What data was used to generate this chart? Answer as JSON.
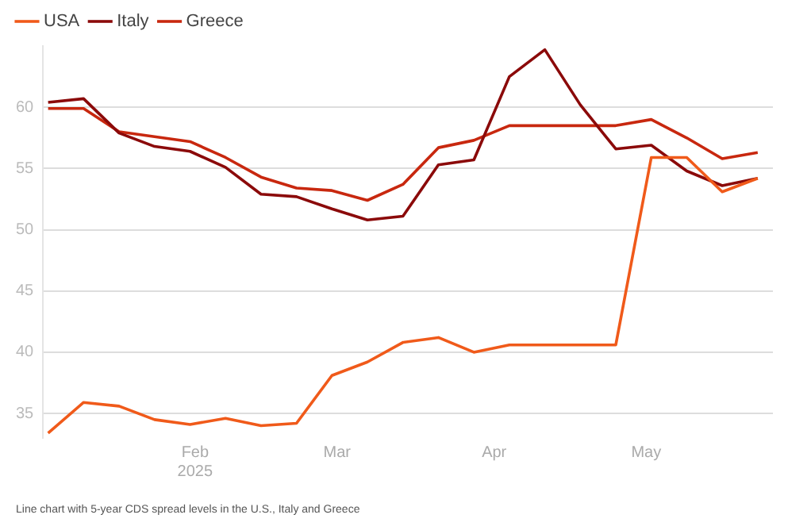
{
  "chart_data": {
    "type": "line",
    "x": [
      "2025-01-03",
      "2025-01-10",
      "2025-01-17",
      "2025-01-24",
      "2025-01-31",
      "2025-02-07",
      "2025-02-14",
      "2025-02-21",
      "2025-02-28",
      "2025-03-07",
      "2025-03-14",
      "2025-03-21",
      "2025-03-28",
      "2025-04-04",
      "2025-04-11",
      "2025-04-18",
      "2025-04-25",
      "2025-05-02",
      "2025-05-09",
      "2025-05-16",
      "2025-05-23"
    ],
    "series": [
      {
        "name": "USA",
        "color": "#f05a1a",
        "values": [
          33.4,
          35.9,
          35.6,
          34.5,
          34.1,
          34.6,
          34.0,
          34.2,
          38.1,
          39.2,
          40.8,
          41.2,
          40.0,
          40.6,
          40.6,
          40.6,
          40.6,
          55.9,
          55.9,
          53.1,
          54.2
        ]
      },
      {
        "name": "Italy",
        "color": "#8b0a0a",
        "values": [
          60.4,
          60.7,
          57.9,
          56.8,
          56.4,
          55.1,
          52.9,
          52.7,
          51.7,
          50.8,
          51.1,
          55.3,
          55.7,
          62.5,
          64.7,
          60.2,
          56.6,
          56.9,
          54.8,
          53.6,
          54.2
        ]
      },
      {
        "name": "Greece",
        "color": "#c8280f",
        "values": [
          59.9,
          59.9,
          58.0,
          57.6,
          57.2,
          55.9,
          54.3,
          53.4,
          53.2,
          52.4,
          53.7,
          56.7,
          57.3,
          58.5,
          58.5,
          58.5,
          58.5,
          59.0,
          57.5,
          55.8,
          56.3
        ]
      }
    ],
    "xlim": [
      "2025-01-02",
      "2025-05-26"
    ],
    "xticks": [
      {
        "value": "2025-02-01",
        "label": "Feb\n2025"
      },
      {
        "value": "2025-03-01",
        "label": "Mar"
      },
      {
        "value": "2025-04-01",
        "label": "Apr"
      },
      {
        "value": "2025-05-01",
        "label": "May"
      }
    ],
    "ylim": [
      33,
      65
    ],
    "yticks": [
      35,
      40,
      45,
      50,
      55,
      60
    ],
    "grid": "y",
    "legend": "top left",
    "marker": "none",
    "line_style": "solid",
    "annotations": [
      "Line chart with 5-year CDS spread levels in the U.S., Italy and Greece"
    ]
  }
}
